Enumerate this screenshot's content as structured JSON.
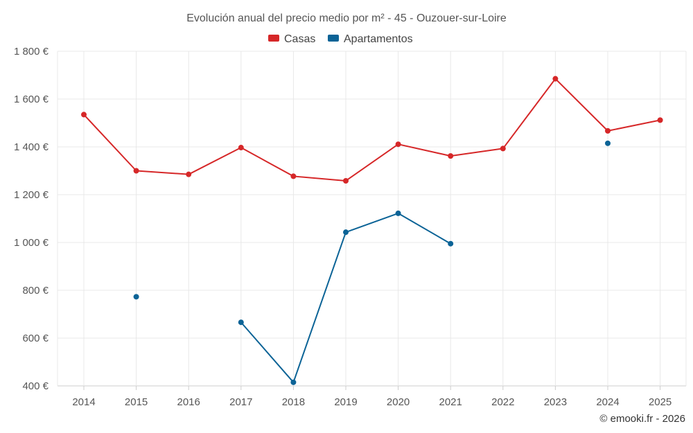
{
  "chart_data": {
    "type": "line",
    "title": "Evolución anual del precio medio por m² - 45 - Ouzouer-sur-Loire",
    "categories": [
      "2014",
      "2015",
      "2016",
      "2017",
      "2018",
      "2019",
      "2020",
      "2021",
      "2022",
      "2023",
      "2024",
      "2025"
    ],
    "y_ticks": [
      "400 €",
      "600 €",
      "800 €",
      "1 000 €",
      "1 200 €",
      "1 400 €",
      "1 600 €",
      "1 800 €"
    ],
    "y_tick_values": [
      400,
      600,
      800,
      1000,
      1200,
      1400,
      1600,
      1800
    ],
    "ylim": [
      400,
      1800
    ],
    "grid": true,
    "legend_position": "top-center",
    "series": [
      {
        "name": "Casas",
        "color": "#d62728",
        "values": [
          1535,
          1300,
          1285,
          1397,
          1277,
          1258,
          1411,
          1362,
          1393,
          1685,
          1467,
          1512
        ]
      },
      {
        "name": "Apartamentos",
        "color": "#0b6396",
        "values": [
          null,
          773,
          null,
          666,
          415,
          1043,
          1122,
          995,
          null,
          null,
          1415,
          null
        ]
      }
    ]
  },
  "credit": "© emooki.fr - 2026"
}
